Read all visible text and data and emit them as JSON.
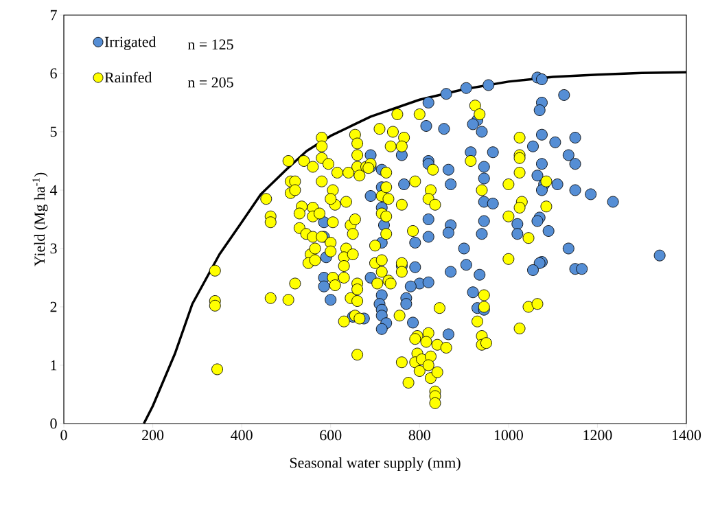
{
  "chart_data": {
    "type": "scatter",
    "xlabel": "Seasonal water supply (mm)",
    "ylabel": "Yield (Mg ha$^{-1}$)",
    "xlim": [
      0,
      1400
    ],
    "ylim": [
      0,
      7
    ],
    "xticks": [
      0,
      200,
      400,
      600,
      800,
      1000,
      1200,
      1400
    ],
    "yticks": [
      0,
      1,
      2,
      3,
      4,
      5,
      6,
      7
    ],
    "grid": false,
    "legend": "top left",
    "marker": "circle",
    "annotations": [
      "n = 125",
      "n = 205"
    ],
    "series": [
      {
        "name": "Irrigated",
        "color": "#558ed5",
        "x": [
          1065,
          1075,
          955,
          905,
          860,
          820,
          1125,
          1075,
          1070,
          930,
          920,
          940,
          815,
          855,
          1075,
          1150,
          1105,
          1055,
          915,
          965,
          760,
          690,
          820,
          1075,
          1135,
          1150,
          945,
          820,
          865,
          715,
          690,
          1065,
          945,
          1110,
          1080,
          870,
          765,
          715,
          1150,
          1075,
          1185,
          690,
          1235,
          945,
          965,
          715,
          820,
          1070,
          1065,
          945,
          720,
          870,
          585,
          1020,
          1090,
          865,
          940,
          820,
          1020,
          790,
          715,
          1135,
          900,
          585,
          590,
          1340,
          905,
          1075,
          1070,
          760,
          790,
          1150,
          1165,
          1055,
          870,
          935,
          690,
          585,
          800,
          820,
          780,
          585,
          715,
          920,
          770,
          600,
          710,
          770,
          930,
          715,
          715,
          650,
          675,
          725,
          785,
          715,
          865,
          945
        ],
        "values": [
          5.93,
          5.9,
          5.8,
          5.75,
          5.65,
          5.5,
          5.63,
          5.5,
          5.37,
          5.2,
          5.13,
          5.0,
          5.1,
          5.05,
          4.95,
          4.9,
          4.82,
          4.75,
          4.65,
          4.65,
          4.6,
          4.6,
          4.5,
          4.45,
          4.6,
          4.45,
          4.4,
          4.45,
          4.35,
          4.35,
          4.4,
          4.25,
          4.2,
          4.1,
          4.1,
          4.1,
          4.1,
          4.05,
          4.0,
          4.0,
          3.93,
          3.9,
          3.8,
          3.8,
          3.77,
          3.7,
          3.5,
          3.53,
          3.47,
          3.47,
          3.4,
          3.4,
          3.45,
          3.42,
          3.3,
          3.27,
          3.25,
          3.2,
          3.25,
          3.1,
          3.1,
          3.0,
          3.0,
          3.2,
          2.85,
          2.88,
          2.72,
          2.77,
          2.75,
          2.7,
          2.68,
          2.65,
          2.65,
          2.63,
          2.6,
          2.55,
          2.5,
          2.5,
          2.4,
          2.42,
          2.35,
          2.35,
          2.2,
          2.25,
          2.15,
          2.12,
          2.05,
          2.05,
          1.98,
          1.95,
          1.85,
          1.83,
          1.8,
          1.72,
          1.73,
          1.62,
          1.53,
          1.95
        ]
      },
      {
        "name": "Rainfed",
        "color": "#ffff00",
        "x": [
          340,
          340,
          340,
          345,
          455,
          465,
          465,
          465,
          505,
          520,
          505,
          510,
          520,
          510,
          520,
          540,
          535,
          530,
          530,
          545,
          555,
          550,
          560,
          560,
          560,
          565,
          565,
          575,
          580,
          560,
          580,
          580,
          580,
          580,
          595,
          605,
          610,
          600,
          605,
          600,
          600,
          605,
          610,
          630,
          615,
          635,
          640,
          645,
          635,
          630,
          630,
          630,
          645,
          650,
          650,
          655,
          655,
          660,
          660,
          660,
          665,
          680,
          660,
          660,
          660,
          655,
          665,
          660,
          690,
          685,
          700,
          700,
          705,
          710,
          715,
          715,
          715,
          715,
          725,
          725,
          725,
          725,
          730,
          735,
          740,
          730,
          735,
          750,
          755,
          760,
          760,
          765,
          760,
          760,
          760,
          775,
          785,
          790,
          795,
          790,
          795,
          790,
          800,
          805,
          800,
          820,
          815,
          825,
          820,
          825,
          830,
          825,
          820,
          835,
          840,
          840,
          835,
          835,
          835,
          845,
          860,
          915,
          925,
          935,
          930,
          940,
          940,
          950,
          945,
          945,
          940,
          1000,
          1000,
          1000,
          1025,
          1025,
          1025,
          1030,
          1025,
          1025,
          1045,
          1045,
          1065,
          1025,
          1085,
          1085
        ],
        "values": [
          2.62,
          2.1,
          2.02,
          0.93,
          3.85,
          3.55,
          3.45,
          2.15,
          2.12,
          2.4,
          4.5,
          4.15,
          4.15,
          3.95,
          4.0,
          4.5,
          3.72,
          3.6,
          3.35,
          3.25,
          2.9,
          2.75,
          3.7,
          3.55,
          3.2,
          3.0,
          2.8,
          3.6,
          3.2,
          4.4,
          4.15,
          4.9,
          4.75,
          4.55,
          4.45,
          4.0,
          3.75,
          3.85,
          3.45,
          3.1,
          2.95,
          2.5,
          2.37,
          2.5,
          4.3,
          3.8,
          4.3,
          3.4,
          3.0,
          2.85,
          2.7,
          1.75,
          2.15,
          2.9,
          3.25,
          3.5,
          4.95,
          4.8,
          4.6,
          4.4,
          4.25,
          4.4,
          2.4,
          2.3,
          2.1,
          1.85,
          1.8,
          1.18,
          4.45,
          4.38,
          3.05,
          2.75,
          2.4,
          5.05,
          3.9,
          3.6,
          2.8,
          2.6,
          4.3,
          4.05,
          3.55,
          3.25,
          3.85,
          4.75,
          5.0,
          2.45,
          2.4,
          5.3,
          1.85,
          2.75,
          2.6,
          4.9,
          4.75,
          3.75,
          1.05,
          0.7,
          3.3,
          4.15,
          1.5,
          1.45,
          1.2,
          1.05,
          0.9,
          1.1,
          5.3,
          1.55,
          1.4,
          1.15,
          1.0,
          0.78,
          4.35,
          4.0,
          3.85,
          3.75,
          1.35,
          0.88,
          0.55,
          0.47,
          0.35,
          1.98,
          1.3,
          4.5,
          5.45,
          5.3,
          1.75,
          1.5,
          1.35,
          1.38,
          2.2,
          2.0,
          4.0,
          4.1,
          3.55,
          2.82,
          4.9,
          4.6,
          4.55,
          3.8,
          3.7,
          4.3,
          3.18,
          2.0,
          2.05,
          1.63,
          4.15,
          3.72
        ]
      },
      {
        "type": "line",
        "color": "#000000",
        "marker": "none",
        "line_style": "solid",
        "x": [
          180,
          200,
          250,
          289,
          350,
          400,
          443,
          500,
          546,
          600,
          690,
          800,
          900,
          1000,
          1100,
          1200,
          1300,
          1400
        ],
        "values": [
          0,
          0.3,
          1.2,
          2.05,
          2.9,
          3.45,
          3.93,
          4.35,
          4.67,
          4.93,
          5.26,
          5.55,
          5.73,
          5.86,
          5.94,
          5.98,
          6.01,
          6.02
        ]
      }
    ]
  }
}
